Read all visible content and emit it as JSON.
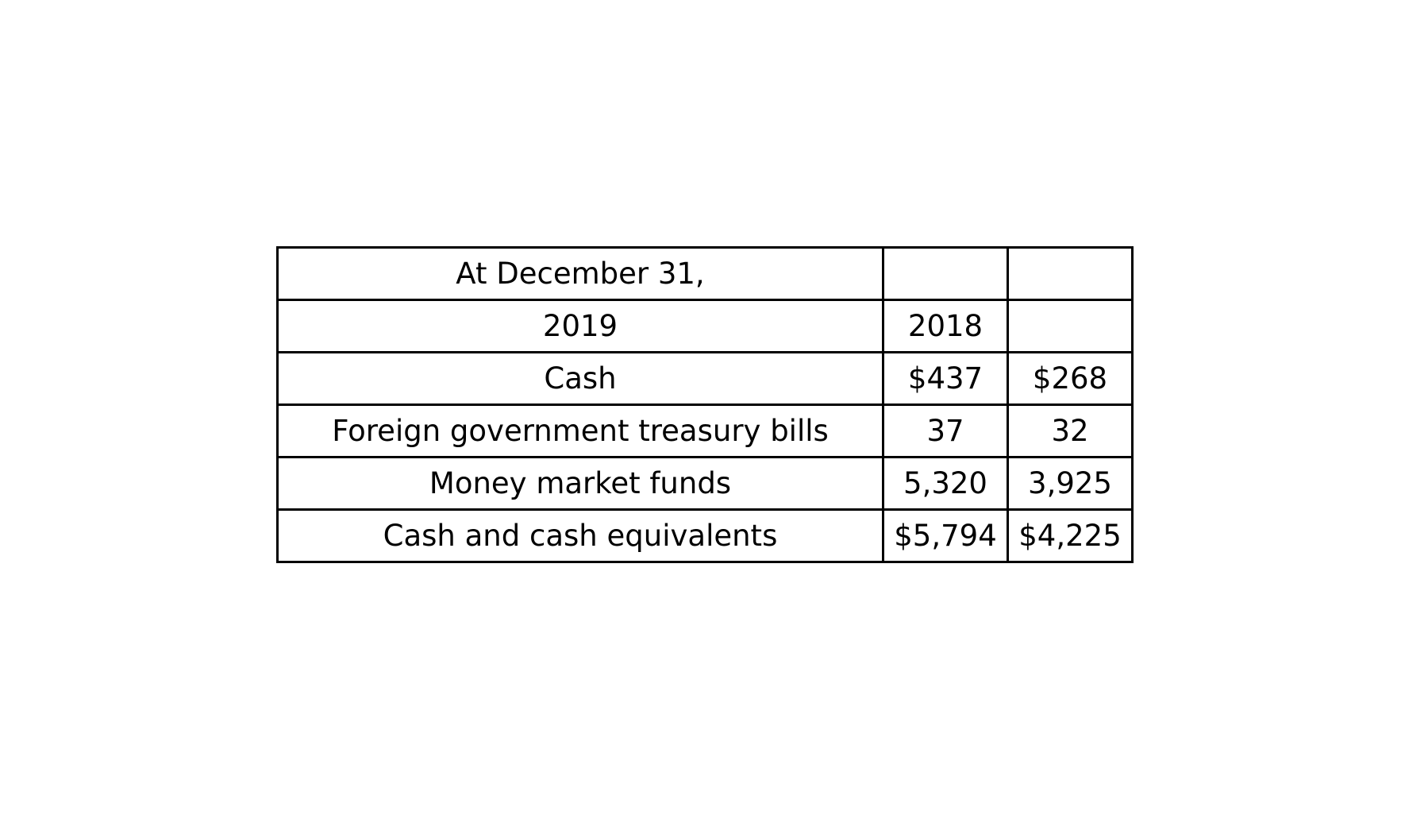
{
  "table": {
    "rows": [
      [
        "At December 31,",
        "",
        ""
      ],
      [
        "2019",
        "2018",
        ""
      ],
      [
        "Cash",
        "$437",
        "$268"
      ],
      [
        "Foreign government treasury bills",
        "37",
        "32"
      ],
      [
        "Money market funds",
        "5,320",
        "3,925"
      ],
      [
        "Cash and cash equivalents",
        "$5,794",
        "$4,225"
      ]
    ]
  }
}
